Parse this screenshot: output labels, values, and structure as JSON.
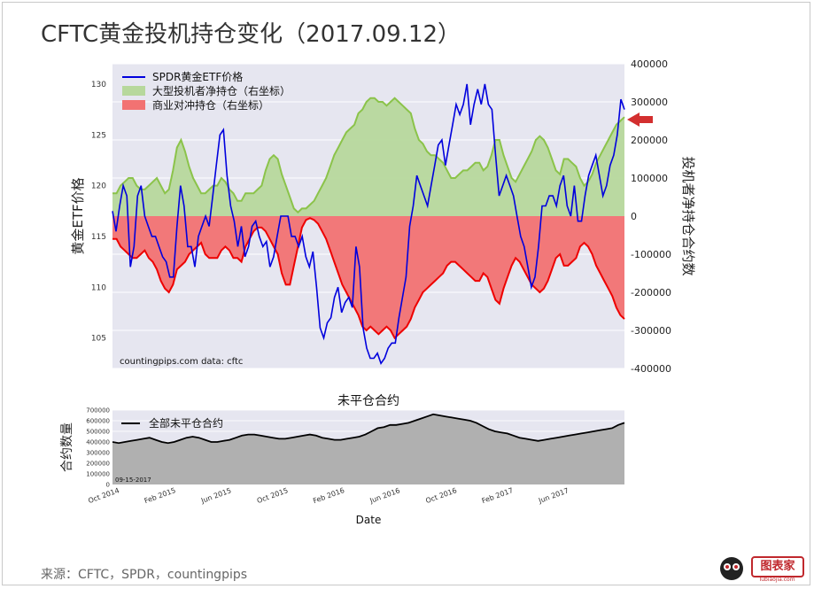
{
  "header": {
    "title": "CFTC黄金投机持仓变化（2017.09.12）",
    "source": "来源：CFTC，SPDR，countingpips"
  },
  "logo": {
    "text": "图表家",
    "subtext": "Tubiaojia.com"
  },
  "colors": {
    "gld": "#0000dd",
    "spec_fill": "#b7d89c",
    "spec_line": "#8bc34a",
    "comm_fill": "#f27272",
    "comm_line": "#ee0000",
    "oi_fill": "#b0b0b0",
    "panel_bg": "#e6e6f0",
    "arrow": "#d32f2f"
  },
  "chart_data": [
    {
      "type": "line",
      "ylabel_left": "黄金ETF价格",
      "ylabel_right": "投机者净持仓合约数",
      "ylim_left": [
        102,
        132
      ],
      "ylim_right": [
        -400000,
        400000
      ],
      "yticks_left": [
        "105",
        "110",
        "115",
        "120",
        "125",
        "130"
      ],
      "yticks_right": [
        "-400000",
        "-300000",
        "-200000",
        "-100000",
        "0",
        "100000",
        "200000",
        "300000",
        "400000"
      ],
      "legend": [
        "SPDR黄金ETF价格",
        "大型投机者净持仓（右坐标）",
        "商业对冲持仓（右坐标）"
      ],
      "legend_position": "top-left",
      "annotation": "countingpips.com    data: cftc",
      "arrow": "points to latest net speculative position",
      "series": [
        {
          "name": "SPDR黄金ETF价格",
          "axis": "left",
          "values": [
            117.5,
            115.5,
            118,
            120,
            119,
            112,
            114,
            119,
            120,
            117,
            116,
            115,
            115,
            114,
            113,
            112.5,
            111,
            111,
            116,
            120,
            118,
            114,
            114,
            112,
            115,
            116,
            117,
            116,
            119,
            122,
            125,
            125.5,
            121,
            118,
            116.5,
            114,
            116,
            113,
            114,
            116,
            116.5,
            115,
            114,
            114.5,
            112,
            113,
            115,
            117,
            117,
            117,
            115,
            115,
            114,
            115,
            113,
            112,
            113.5,
            110,
            106,
            105,
            106.5,
            107,
            109,
            110,
            107.5,
            108.5,
            109,
            108,
            114,
            112,
            106,
            104,
            103,
            103,
            103.5,
            102.5,
            103,
            104,
            104.5,
            104.5,
            107,
            109,
            111,
            116,
            118,
            121,
            120,
            119,
            118,
            120,
            122,
            124,
            124.5,
            122,
            124,
            126,
            128,
            127,
            128,
            130,
            126,
            128,
            129.5,
            128,
            130,
            128,
            127.5,
            123,
            119,
            120,
            121,
            120,
            119,
            117,
            115,
            114,
            112,
            110,
            111,
            114,
            118,
            118,
            119,
            119,
            118,
            120,
            121,
            118,
            117,
            120,
            116.5,
            116.5,
            119,
            121,
            122,
            123,
            121,
            119,
            120,
            122,
            123,
            125,
            128.5,
            127.5
          ]
        },
        {
          "name": "大型投机者净持仓（右坐标）",
          "axis": "right",
          "values": [
            60000,
            60000,
            80000,
            90000,
            100000,
            100000,
            80000,
            70000,
            70000,
            80000,
            90000,
            100000,
            80000,
            60000,
            70000,
            120000,
            180000,
            200000,
            170000,
            130000,
            100000,
            80000,
            60000,
            60000,
            70000,
            80000,
            80000,
            100000,
            90000,
            70000,
            60000,
            40000,
            40000,
            60000,
            60000,
            60000,
            70000,
            80000,
            120000,
            150000,
            160000,
            150000,
            110000,
            80000,
            50000,
            20000,
            10000,
            20000,
            20000,
            30000,
            40000,
            60000,
            80000,
            100000,
            130000,
            160000,
            180000,
            200000,
            220000,
            230000,
            240000,
            270000,
            280000,
            300000,
            310000,
            310000,
            300000,
            300000,
            290000,
            300000,
            310000,
            300000,
            290000,
            280000,
            270000,
            230000,
            200000,
            190000,
            170000,
            160000,
            160000,
            150000,
            140000,
            120000,
            100000,
            100000,
            110000,
            120000,
            120000,
            130000,
            140000,
            140000,
            120000,
            130000,
            160000,
            200000,
            200000,
            160000,
            130000,
            100000,
            90000,
            110000,
            130000,
            150000,
            170000,
            200000,
            210000,
            200000,
            180000,
            150000,
            120000,
            110000,
            150000,
            150000,
            140000,
            130000,
            100000,
            80000,
            90000,
            110000,
            140000,
            160000,
            180000,
            200000,
            220000,
            240000,
            250000,
            260000
          ]
        },
        {
          "name": "商业对冲持仓（右坐标）",
          "axis": "right",
          "values": [
            -60000,
            -60000,
            -80000,
            -90000,
            -100000,
            -110000,
            -110000,
            -100000,
            -90000,
            -110000,
            -120000,
            -140000,
            -170000,
            -190000,
            -200000,
            -180000,
            -140000,
            -130000,
            -120000,
            -100000,
            -90000,
            -80000,
            -70000,
            -100000,
            -110000,
            -110000,
            -110000,
            -90000,
            -80000,
            -90000,
            -110000,
            -110000,
            -120000,
            -80000,
            -60000,
            -40000,
            -30000,
            -30000,
            -40000,
            -60000,
            -80000,
            -100000,
            -150000,
            -180000,
            -180000,
            -130000,
            -80000,
            -30000,
            -10000,
            -5000,
            -10000,
            -20000,
            -40000,
            -60000,
            -90000,
            -120000,
            -150000,
            -180000,
            -200000,
            -220000,
            -240000,
            -260000,
            -290000,
            -300000,
            -290000,
            -300000,
            -310000,
            -300000,
            -290000,
            -300000,
            -320000,
            -310000,
            -300000,
            -290000,
            -270000,
            -240000,
            -220000,
            -200000,
            -190000,
            -180000,
            -170000,
            -160000,
            -150000,
            -130000,
            -120000,
            -120000,
            -130000,
            -140000,
            -150000,
            -160000,
            -170000,
            -170000,
            -150000,
            -160000,
            -190000,
            -220000,
            -230000,
            -190000,
            -160000,
            -130000,
            -110000,
            -120000,
            -140000,
            -160000,
            -180000,
            -190000,
            -200000,
            -190000,
            -170000,
            -140000,
            -110000,
            -100000,
            -130000,
            -130000,
            -120000,
            -110000,
            -80000,
            -70000,
            -80000,
            -100000,
            -130000,
            -150000,
            -170000,
            -190000,
            -210000,
            -240000,
            -260000,
            -270000
          ]
        }
      ]
    },
    {
      "type": "area",
      "title": "未平仓合约",
      "xlabel": "Date",
      "ylabel": "合约数量",
      "ylim": [
        0,
        700000
      ],
      "yticks": [
        "0",
        "100000",
        "200000",
        "300000",
        "400000",
        "500000",
        "600000",
        "700000"
      ],
      "xticks": [
        "Oct 2014",
        "Feb 2015",
        "Jun 2015",
        "Oct 2015",
        "Feb 2016",
        "Jun 2016",
        "Oct 2016",
        "Feb 2017",
        "Jun 2017"
      ],
      "legend": [
        "全部未平仓合约"
      ],
      "legend_position": "top-left",
      "annotation": "09-15-2017",
      "series": [
        {
          "name": "全部未平仓合约",
          "values": [
            400000,
            390000,
            400000,
            410000,
            420000,
            430000,
            440000,
            420000,
            400000,
            390000,
            400000,
            420000,
            440000,
            450000,
            440000,
            420000,
            400000,
            400000,
            410000,
            420000,
            440000,
            460000,
            470000,
            470000,
            460000,
            450000,
            440000,
            430000,
            430000,
            440000,
            450000,
            460000,
            470000,
            460000,
            440000,
            430000,
            420000,
            420000,
            430000,
            440000,
            450000,
            470000,
            500000,
            530000,
            540000,
            560000,
            560000,
            570000,
            580000,
            600000,
            620000,
            640000,
            660000,
            650000,
            640000,
            630000,
            620000,
            610000,
            600000,
            580000,
            550000,
            520000,
            500000,
            490000,
            480000,
            460000,
            440000,
            430000,
            420000,
            410000,
            420000,
            430000,
            440000,
            450000,
            460000,
            470000,
            480000,
            490000,
            500000,
            510000,
            520000,
            530000,
            560000,
            580000
          ]
        }
      ]
    }
  ]
}
